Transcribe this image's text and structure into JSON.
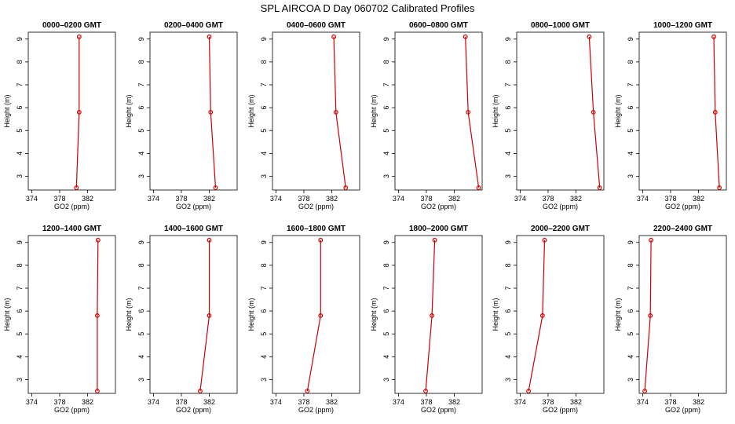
{
  "title": "SPL AIRCOA D  Day 060702  Calibrated Profiles",
  "chart_data": [
    {
      "type": "line",
      "title": "0000–0200 GMT",
      "xlabel": "GO2 (ppm)",
      "ylabel": "Height (m)",
      "xlim": [
        373.5,
        386
      ],
      "ylim": [
        2.4,
        9.3
      ],
      "xticks": [
        "374",
        "378",
        "382"
      ],
      "yticks": [
        "3",
        "4",
        "5",
        "6",
        "7",
        "8",
        "9"
      ],
      "color": "#cc0000",
      "series": [
        {
          "x": [
            380.4,
            380.8,
            380.8
          ],
          "y": [
            2.5,
            5.8,
            9.1
          ]
        }
      ]
    },
    {
      "type": "line",
      "title": "0200–0400 GMT",
      "xlabel": "GO2 (ppm)",
      "ylabel": "Height (m)",
      "xlim": [
        373.5,
        386
      ],
      "ylim": [
        2.4,
        9.3
      ],
      "xticks": [
        "374",
        "378",
        "382"
      ],
      "yticks": [
        "3",
        "4",
        "5",
        "6",
        "7",
        "8",
        "9"
      ],
      "color": "#cc0000",
      "series": [
        {
          "x": [
            382.9,
            382.2,
            382.0
          ],
          "y": [
            2.5,
            5.8,
            9.1
          ]
        }
      ]
    },
    {
      "type": "line",
      "title": "0400–0600 GMT",
      "xlabel": "GO2 (ppm)",
      "ylabel": "Height (m)",
      "xlim": [
        373.5,
        386
      ],
      "ylim": [
        2.4,
        9.3
      ],
      "xticks": [
        "374",
        "378",
        "382"
      ],
      "yticks": [
        "3",
        "4",
        "5",
        "6",
        "7",
        "8",
        "9"
      ],
      "color": "#cc0000",
      "series": [
        {
          "x": [
            384.0,
            382.6,
            382.3
          ],
          "y": [
            2.5,
            5.8,
            9.1
          ]
        }
      ]
    },
    {
      "type": "line",
      "title": "0600–0800 GMT",
      "xlabel": "GO2 (ppm)",
      "ylabel": "Height (m)",
      "xlim": [
        373.5,
        386
      ],
      "ylim": [
        2.4,
        9.3
      ],
      "xticks": [
        "374",
        "378",
        "382"
      ],
      "yticks": [
        "3",
        "4",
        "5",
        "6",
        "7",
        "8",
        "9"
      ],
      "color": "#cc0000",
      "series": [
        {
          "x": [
            385.5,
            384.0,
            383.6
          ],
          "y": [
            2.5,
            5.8,
            9.1
          ]
        }
      ]
    },
    {
      "type": "line",
      "title": "0800–1000 GMT",
      "xlabel": "GO2 (ppm)",
      "ylabel": "Height (m)",
      "xlim": [
        373.5,
        386
      ],
      "ylim": [
        2.4,
        9.3
      ],
      "xticks": [
        "374",
        "378",
        "382"
      ],
      "yticks": [
        "3",
        "4",
        "5",
        "6",
        "7",
        "8",
        "9"
      ],
      "color": "#cc0000",
      "series": [
        {
          "x": [
            385.4,
            384.5,
            383.9
          ],
          "y": [
            2.5,
            5.8,
            9.1
          ]
        }
      ]
    },
    {
      "type": "line",
      "title": "1000–1200 GMT",
      "xlabel": "GO2 (ppm)",
      "ylabel": "Height (m)",
      "xlim": [
        373.5,
        386
      ],
      "ylim": [
        2.4,
        9.3
      ],
      "xticks": [
        "374",
        "378",
        "382"
      ],
      "yticks": [
        "3",
        "4",
        "5",
        "6",
        "7",
        "8",
        "9"
      ],
      "color": "#cc0000",
      "series": [
        {
          "x": [
            385.0,
            384.4,
            384.2
          ],
          "y": [
            2.5,
            5.8,
            9.1
          ]
        }
      ]
    },
    {
      "type": "line",
      "title": "1200–1400 GMT",
      "xlabel": "GO2 (ppm)",
      "ylabel": "Height (m)",
      "xlim": [
        373.5,
        386
      ],
      "ylim": [
        2.4,
        9.3
      ],
      "xticks": [
        "374",
        "378",
        "382"
      ],
      "yticks": [
        "3",
        "4",
        "5",
        "6",
        "7",
        "8",
        "9"
      ],
      "color": "#cc0000",
      "series": [
        {
          "x": [
            383.4,
            383.4,
            383.5
          ],
          "y": [
            2.5,
            5.8,
            9.1
          ]
        }
      ]
    },
    {
      "type": "line",
      "title": "1400–1600 GMT",
      "xlabel": "GO2 (ppm)",
      "ylabel": "Height (m)",
      "xlim": [
        373.5,
        386
      ],
      "ylim": [
        2.4,
        9.3
      ],
      "xticks": [
        "374",
        "378",
        "382"
      ],
      "yticks": [
        "3",
        "4",
        "5",
        "6",
        "7",
        "8",
        "9"
      ],
      "color": "#cc0000",
      "series": [
        {
          "x": [
            380.7,
            382.0,
            382.0
          ],
          "y": [
            2.5,
            5.8,
            9.1
          ]
        }
      ]
    },
    {
      "type": "line",
      "title": "1600–1800 GMT",
      "xlabel": "GO2 (ppm)",
      "ylabel": "Height (m)",
      "xlim": [
        373.5,
        386
      ],
      "ylim": [
        2.4,
        9.3
      ],
      "xticks": [
        "374",
        "378",
        "382"
      ],
      "yticks": [
        "3",
        "4",
        "5",
        "6",
        "7",
        "8",
        "9"
      ],
      "color": "#cc0000",
      "series": [
        {
          "x": [
            378.5,
            380.4,
            380.4
          ],
          "y": [
            2.5,
            5.8,
            9.1
          ]
        }
      ]
    },
    {
      "type": "line",
      "title": "1800–2000 GMT",
      "xlabel": "GO2 (ppm)",
      "ylabel": "Height (m)",
      "xlim": [
        373.5,
        386
      ],
      "ylim": [
        2.4,
        9.3
      ],
      "xticks": [
        "374",
        "378",
        "382"
      ],
      "yticks": [
        "3",
        "4",
        "5",
        "6",
        "7",
        "8",
        "9"
      ],
      "color": "#cc0000",
      "series": [
        {
          "x": [
            377.9,
            378.8,
            379.2
          ],
          "y": [
            2.5,
            5.8,
            9.1
          ]
        }
      ]
    },
    {
      "type": "line",
      "title": "2000–2200 GMT",
      "xlabel": "GO2 (ppm)",
      "ylabel": "Height (m)",
      "xlim": [
        373.5,
        386
      ],
      "ylim": [
        2.4,
        9.3
      ],
      "xticks": [
        "374",
        "378",
        "382"
      ],
      "yticks": [
        "3",
        "4",
        "5",
        "6",
        "7",
        "8",
        "9"
      ],
      "color": "#cc0000",
      "series": [
        {
          "x": [
            375.2,
            377.2,
            377.5
          ],
          "y": [
            2.5,
            5.8,
            9.1
          ]
        }
      ]
    },
    {
      "type": "line",
      "title": "2200–2400 GMT",
      "xlabel": "GO2 (ppm)",
      "ylabel": "Height (m)",
      "xlim": [
        373.5,
        386
      ],
      "ylim": [
        2.4,
        9.3
      ],
      "xticks": [
        "374",
        "378",
        "382"
      ],
      "yticks": [
        "3",
        "4",
        "5",
        "6",
        "7",
        "8",
        "9"
      ],
      "color": "#cc0000",
      "series": [
        {
          "x": [
            374.3,
            375.1,
            375.2
          ],
          "y": [
            2.5,
            5.8,
            9.1
          ]
        }
      ]
    }
  ]
}
